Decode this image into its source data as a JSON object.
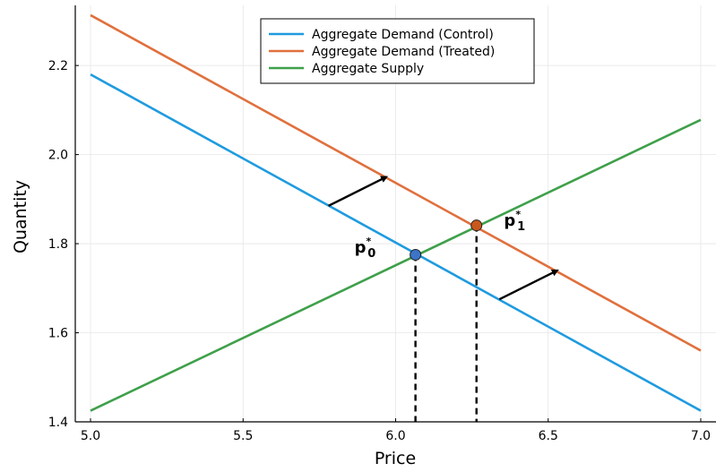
{
  "chart_data": {
    "type": "line",
    "title": "",
    "xlabel": "Price",
    "ylabel": "Quantity",
    "xlim": [
      4.95,
      7.05
    ],
    "ylim": [
      1.4,
      2.335
    ],
    "xticks": [
      5.0,
      5.5,
      6.0,
      6.5,
      7.0
    ],
    "xtick_labels": [
      "5.0",
      "5.5",
      "6.0",
      "6.5",
      "7.0"
    ],
    "yticks": [
      1.4,
      1.6,
      1.8,
      2.0,
      2.2
    ],
    "ytick_labels": [
      "1.4",
      "1.6",
      "1.8",
      "2.0",
      "2.2"
    ],
    "grid": true,
    "legend_position": "top-center",
    "series": [
      {
        "name": "Aggregate Demand (Control)",
        "color": "#1f9bdf",
        "x": [
          5.0,
          7.0
        ],
        "y": [
          2.18,
          1.425
        ]
      },
      {
        "name": "Aggregate Demand (Treated)",
        "color": "#e0703d",
        "x": [
          5.0,
          7.0
        ],
        "y": [
          2.313,
          1.56
        ]
      },
      {
        "name": "Aggregate Supply",
        "color": "#3fa04a",
        "x": [
          5.0,
          7.0
        ],
        "y": [
          1.425,
          2.078
        ]
      }
    ],
    "equilibria": [
      {
        "x": 6.065,
        "y": 1.775,
        "color": "#3c74c7"
      },
      {
        "x": 6.265,
        "y": 1.841,
        "color": "#c8581c"
      }
    ],
    "shift_arrows": [
      {
        "from": [
          5.78,
          1.885
        ],
        "to": [
          5.97,
          1.95
        ]
      },
      {
        "from": [
          6.34,
          1.675
        ],
        "to": [
          6.53,
          1.74
        ]
      }
    ],
    "annotations": [
      {
        "label": "p",
        "sup": "*",
        "sub": "0",
        "x": 5.9,
        "y": 1.78
      },
      {
        "label": "p",
        "sup": "*",
        "sub": "1",
        "x": 6.39,
        "y": 1.84
      }
    ]
  }
}
